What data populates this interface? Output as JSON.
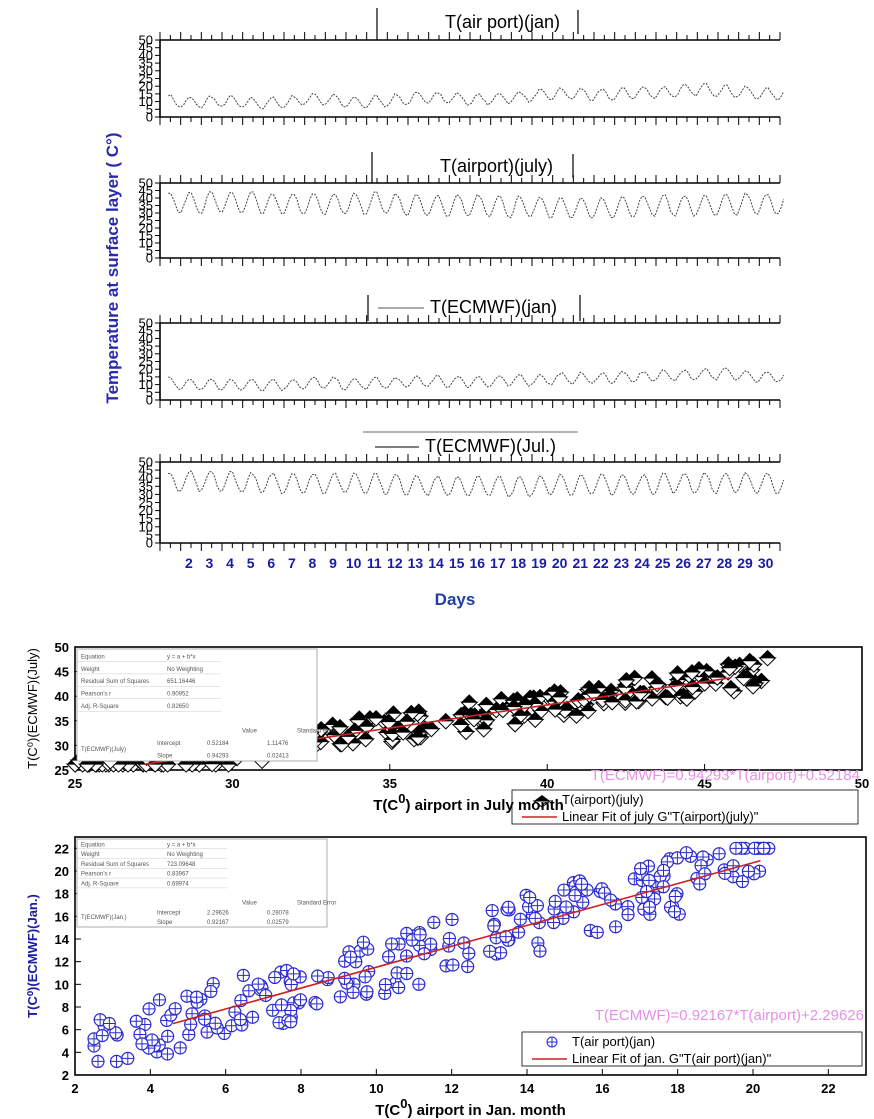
{
  "chart_data": [
    {
      "type": "line",
      "title": "T(air port)(jan)",
      "ylim": [
        0,
        50
      ],
      "yticks": [
        "0",
        "5",
        "10",
        "15",
        "20",
        "25",
        "30",
        "35",
        "40",
        "45",
        "50"
      ],
      "days": 30,
      "base": [
        11,
        9,
        10,
        10,
        9,
        9,
        10,
        12,
        11,
        9,
        10,
        11,
        12,
        13,
        12,
        11,
        12,
        13,
        14,
        15,
        15,
        14,
        15,
        16,
        16,
        17,
        18,
        17,
        16,
        15
      ],
      "amp": 4
    },
    {
      "type": "line",
      "title": "T(airport)(july)",
      "ylim": [
        0,
        50
      ],
      "yticks": [
        "0",
        "5",
        "10",
        "15",
        "20",
        "25",
        "30",
        "35",
        "40",
        "45",
        "50"
      ],
      "days": 30,
      "base": [
        37,
        37,
        37,
        37,
        37,
        36,
        36,
        36,
        36,
        36,
        37,
        36,
        35,
        35,
        35,
        35,
        34,
        34,
        34,
        34,
        33,
        33,
        34,
        35,
        35,
        35,
        35,
        35,
        36,
        36
      ],
      "amp": 8
    },
    {
      "type": "line",
      "title": "T(ECMWF)(jan)",
      "ylim": [
        0,
        50
      ],
      "yticks": [
        "0",
        "5",
        "10",
        "15",
        "20",
        "25",
        "30",
        "35",
        "40",
        "45",
        "50"
      ],
      "days": 30,
      "base": [
        11,
        10,
        10,
        10,
        10,
        10,
        10,
        11,
        11,
        10,
        11,
        11,
        12,
        12,
        12,
        12,
        12,
        13,
        13,
        14,
        14,
        14,
        15,
        15,
        16,
        16,
        17,
        17,
        16,
        15
      ],
      "amp": 4
    },
    {
      "type": "line",
      "title": "T(ECMWF)(Jul.)",
      "ylim": [
        0,
        50
      ],
      "yticks": [
        "0",
        "5",
        "10",
        "15",
        "20",
        "25",
        "30",
        "35",
        "40",
        "45",
        "50"
      ],
      "days": 30,
      "base": [
        37,
        38,
        38,
        38,
        37,
        37,
        37,
        37,
        37,
        37,
        37,
        36,
        36,
        35,
        35,
        35,
        35,
        35,
        35,
        36,
        36,
        36,
        36,
        36,
        37,
        37,
        37,
        37,
        37,
        37
      ],
      "amp": 7
    },
    {
      "type": "scatter",
      "xlabel_pre": "T(C",
      "xlabel_sup": "0",
      "xlabel_post": ") airport in July month",
      "ylabel": "T(C⁰)(ECMWF)(July)",
      "xlim": [
        25,
        50
      ],
      "ylim": [
        25,
        50
      ],
      "xticks": [
        25,
        30,
        35,
        40,
        45,
        50
      ],
      "yticks": [
        25,
        30,
        35,
        40,
        45,
        50
      ],
      "slope": 0.94293,
      "intercept": 0.52184,
      "fit_range": [
        27.2,
        45.8
      ],
      "equation": "T(ECMWF)=0.94293*T(airport)+0.52184",
      "legend": [
        "T(airport)(july)",
        "Linear Fit of july G\"T(airport)(july)\""
      ],
      "points_range": [
        25,
        47
      ]
    },
    {
      "type": "scatter",
      "xlabel_pre": "T(C",
      "xlabel_sup": "0",
      "xlabel_post": ") airport in Jan. month",
      "ylabel": "T(C⁰)(ECMWF)(Jan.)",
      "xlim": [
        2,
        23
      ],
      "ylim": [
        2,
        23
      ],
      "xticks": [
        2,
        4,
        6,
        8,
        10,
        12,
        14,
        16,
        18,
        20,
        22
      ],
      "yticks": [
        2,
        4,
        6,
        8,
        10,
        12,
        14,
        16,
        18,
        20,
        22
      ],
      "slope": 0.92167,
      "intercept": 2.29626,
      "fit_range": [
        4.6,
        20.2
      ],
      "equation": "T(ECMWF)=0.92167*T(airport)+2.29626",
      "legend": [
        "T(air port)(jan)",
        "Linear Fit of jan. G\"T(air port)(jan)\""
      ],
      "points_range": [
        2.5,
        20.5
      ]
    }
  ],
  "stacked": {
    "ylabel": "Temperature at surface layer ( C°)",
    "xlabel": "Days",
    "xticks": [
      "2",
      "3",
      "4",
      "5",
      "6",
      "7",
      "8",
      "9",
      "10",
      "11",
      "12",
      "13",
      "14",
      "15",
      "16",
      "17",
      "18",
      "19",
      "20",
      "21",
      "22",
      "23",
      "24",
      "25",
      "26",
      "27",
      "28",
      "29",
      "30"
    ]
  },
  "stats_july": {
    "rows": [
      [
        "Equation",
        "y = a + b*x"
      ],
      [
        "Weight",
        "No Weighting"
      ],
      [
        "Residual Sum of Squares",
        "651.16446"
      ],
      [
        "Pearson's r",
        "0.90952"
      ],
      [
        "Adj. R-Square",
        "0.82650"
      ]
    ],
    "head": [
      "",
      "Value",
      "Standard Error"
    ],
    "coef": [
      [
        "Intercept",
        "0.52184",
        "1.11476"
      ],
      [
        "Slope",
        "0.94293",
        "0.02413"
      ]
    ],
    "name": "T(ECMWF)(July)"
  },
  "stats_jan": {
    "rows": [
      [
        "Equation",
        "y = a + b*x"
      ],
      [
        "Weight",
        "No Weighting"
      ],
      [
        "Residual Sum of Squares",
        "723.09648"
      ],
      [
        "Pearson's r",
        "0.83967"
      ],
      [
        "Adj. R-Square",
        "0.69974"
      ]
    ],
    "head": [
      "",
      "Value",
      "Standard Error"
    ],
    "coef": [
      [
        "Intercept",
        "2.29626",
        "0.28078"
      ],
      [
        "Slope",
        "0.92167",
        "0.02579"
      ]
    ],
    "name": "T(ECMWF)(Jan.)"
  },
  "colors": {
    "fit_line": "#cc2222",
    "equation": "#e88fe8",
    "blue_marker": "#2a2ad0",
    "axis_label_blue": "#1a1aa8"
  }
}
